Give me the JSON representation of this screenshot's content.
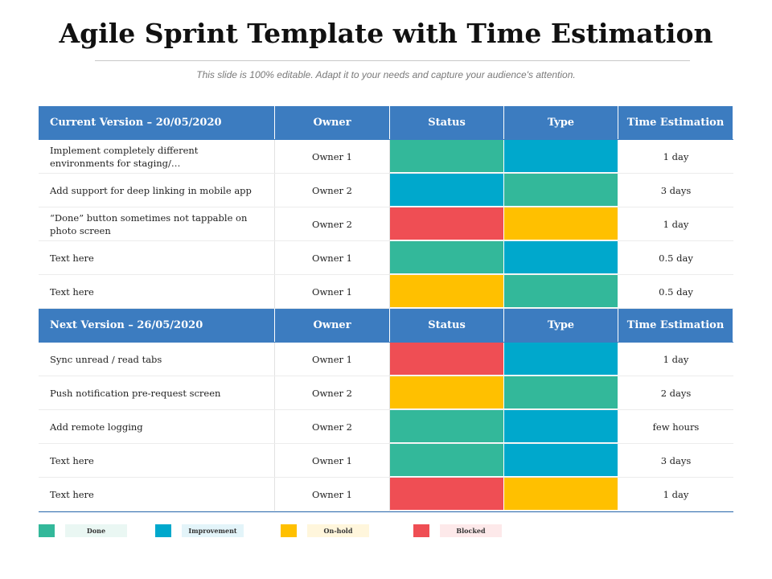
{
  "title": "Agile Sprint Template with Time Estimation",
  "subtitle": "This slide is 100% editable. Adapt it to your needs and capture your audience's attention.",
  "colors": {
    "done": "#33b89a",
    "improvement": "#00a8cc",
    "on_hold": "#ffc000",
    "blocked": "#ef4e54",
    "header": "#3c7cc0"
  },
  "sections": [
    {
      "header": [
        "Current Version – 20/05/2020",
        "Owner",
        "Status",
        "Type",
        "Time Estimation"
      ],
      "rows": [
        {
          "task": "Implement  completely different  environments for staging/…",
          "owner": "Owner 1",
          "status": "done",
          "type": "improvement",
          "time": "1 day"
        },
        {
          "task": "Add support  for deep  linking in mobile app",
          "owner": "Owner 2",
          "status": "improvement",
          "type": "done",
          "time": "3 days"
        },
        {
          "task": "“Done”  button  sometimes  not  tappable  on photo screen",
          "owner": "Owner 2",
          "status": "blocked",
          "type": "on_hold",
          "time": "1 day"
        },
        {
          "task": "Text here",
          "owner": "Owner 1",
          "status": "done",
          "type": "improvement",
          "time": "0.5 day"
        },
        {
          "task": "Text here",
          "owner": "Owner 1",
          "status": "on_hold",
          "type": "done",
          "time": "0.5 day"
        }
      ]
    },
    {
      "header": [
        "Next Version – 26/05/2020",
        "Owner",
        "Status",
        "Type",
        "Time Estimation"
      ],
      "rows": [
        {
          "task": "Sync unread  / read  tabs",
          "owner": "Owner 1",
          "status": "blocked",
          "type": "improvement",
          "time": "1 day"
        },
        {
          "task": "Push notification pre-request  screen",
          "owner": "Owner 2",
          "status": "on_hold",
          "type": "done",
          "time": "2 days"
        },
        {
          "task": "Add remote  logging",
          "owner": "Owner 2",
          "status": "done",
          "type": "improvement",
          "time": "few hours"
        },
        {
          "task": "Text here",
          "owner": "Owner 1",
          "status": "done",
          "type": "improvement",
          "time": "3 days"
        },
        {
          "task": "Text here",
          "owner": "Owner 1",
          "status": "blocked",
          "type": "on_hold",
          "time": "1 day"
        }
      ]
    }
  ],
  "legend": [
    {
      "key": "done",
      "label": "Done",
      "label_bg": "#eaf7f3"
    },
    {
      "key": "improvement",
      "label": "Improvement",
      "label_bg": "#e3f4f9"
    },
    {
      "key": "on_hold",
      "label": "On-hold",
      "label_bg": "#fff6dc"
    },
    {
      "key": "blocked",
      "label": "Blocked",
      "label_bg": "#fde9ea"
    }
  ]
}
